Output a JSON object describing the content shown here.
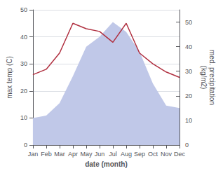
{
  "chart_data": {
    "type": "line",
    "categories": [
      "Jan",
      "Feb",
      "Mar",
      "Apr",
      "May",
      "Jun",
      "Jul",
      "Aug",
      "Sep",
      "Oct",
      "Nov",
      "Dec"
    ],
    "xlabel": "date (month)",
    "ylabel": "max temp (C)",
    "y2label": "med. precipitation\n(kg/m2)",
    "series": [
      {
        "type": "area",
        "axis": "y2",
        "color": "#c0c8e8",
        "values": [
          11,
          12,
          17,
          28,
          40,
          44,
          50,
          46,
          38,
          25,
          16,
          15
        ]
      },
      {
        "type": "line",
        "color": "#b03040",
        "values": [
          26,
          28,
          34,
          45,
          43,
          42,
          38,
          45,
          34,
          30,
          27,
          25
        ]
      }
    ],
    "ylim": [
      0,
      50
    ],
    "yticks": [
      0,
      10,
      20,
      30,
      40,
      50
    ],
    "y2lim": [
      0,
      55
    ],
    "y2ticks": [
      0,
      10,
      20,
      30,
      40,
      50
    ],
    "grid": true
  }
}
